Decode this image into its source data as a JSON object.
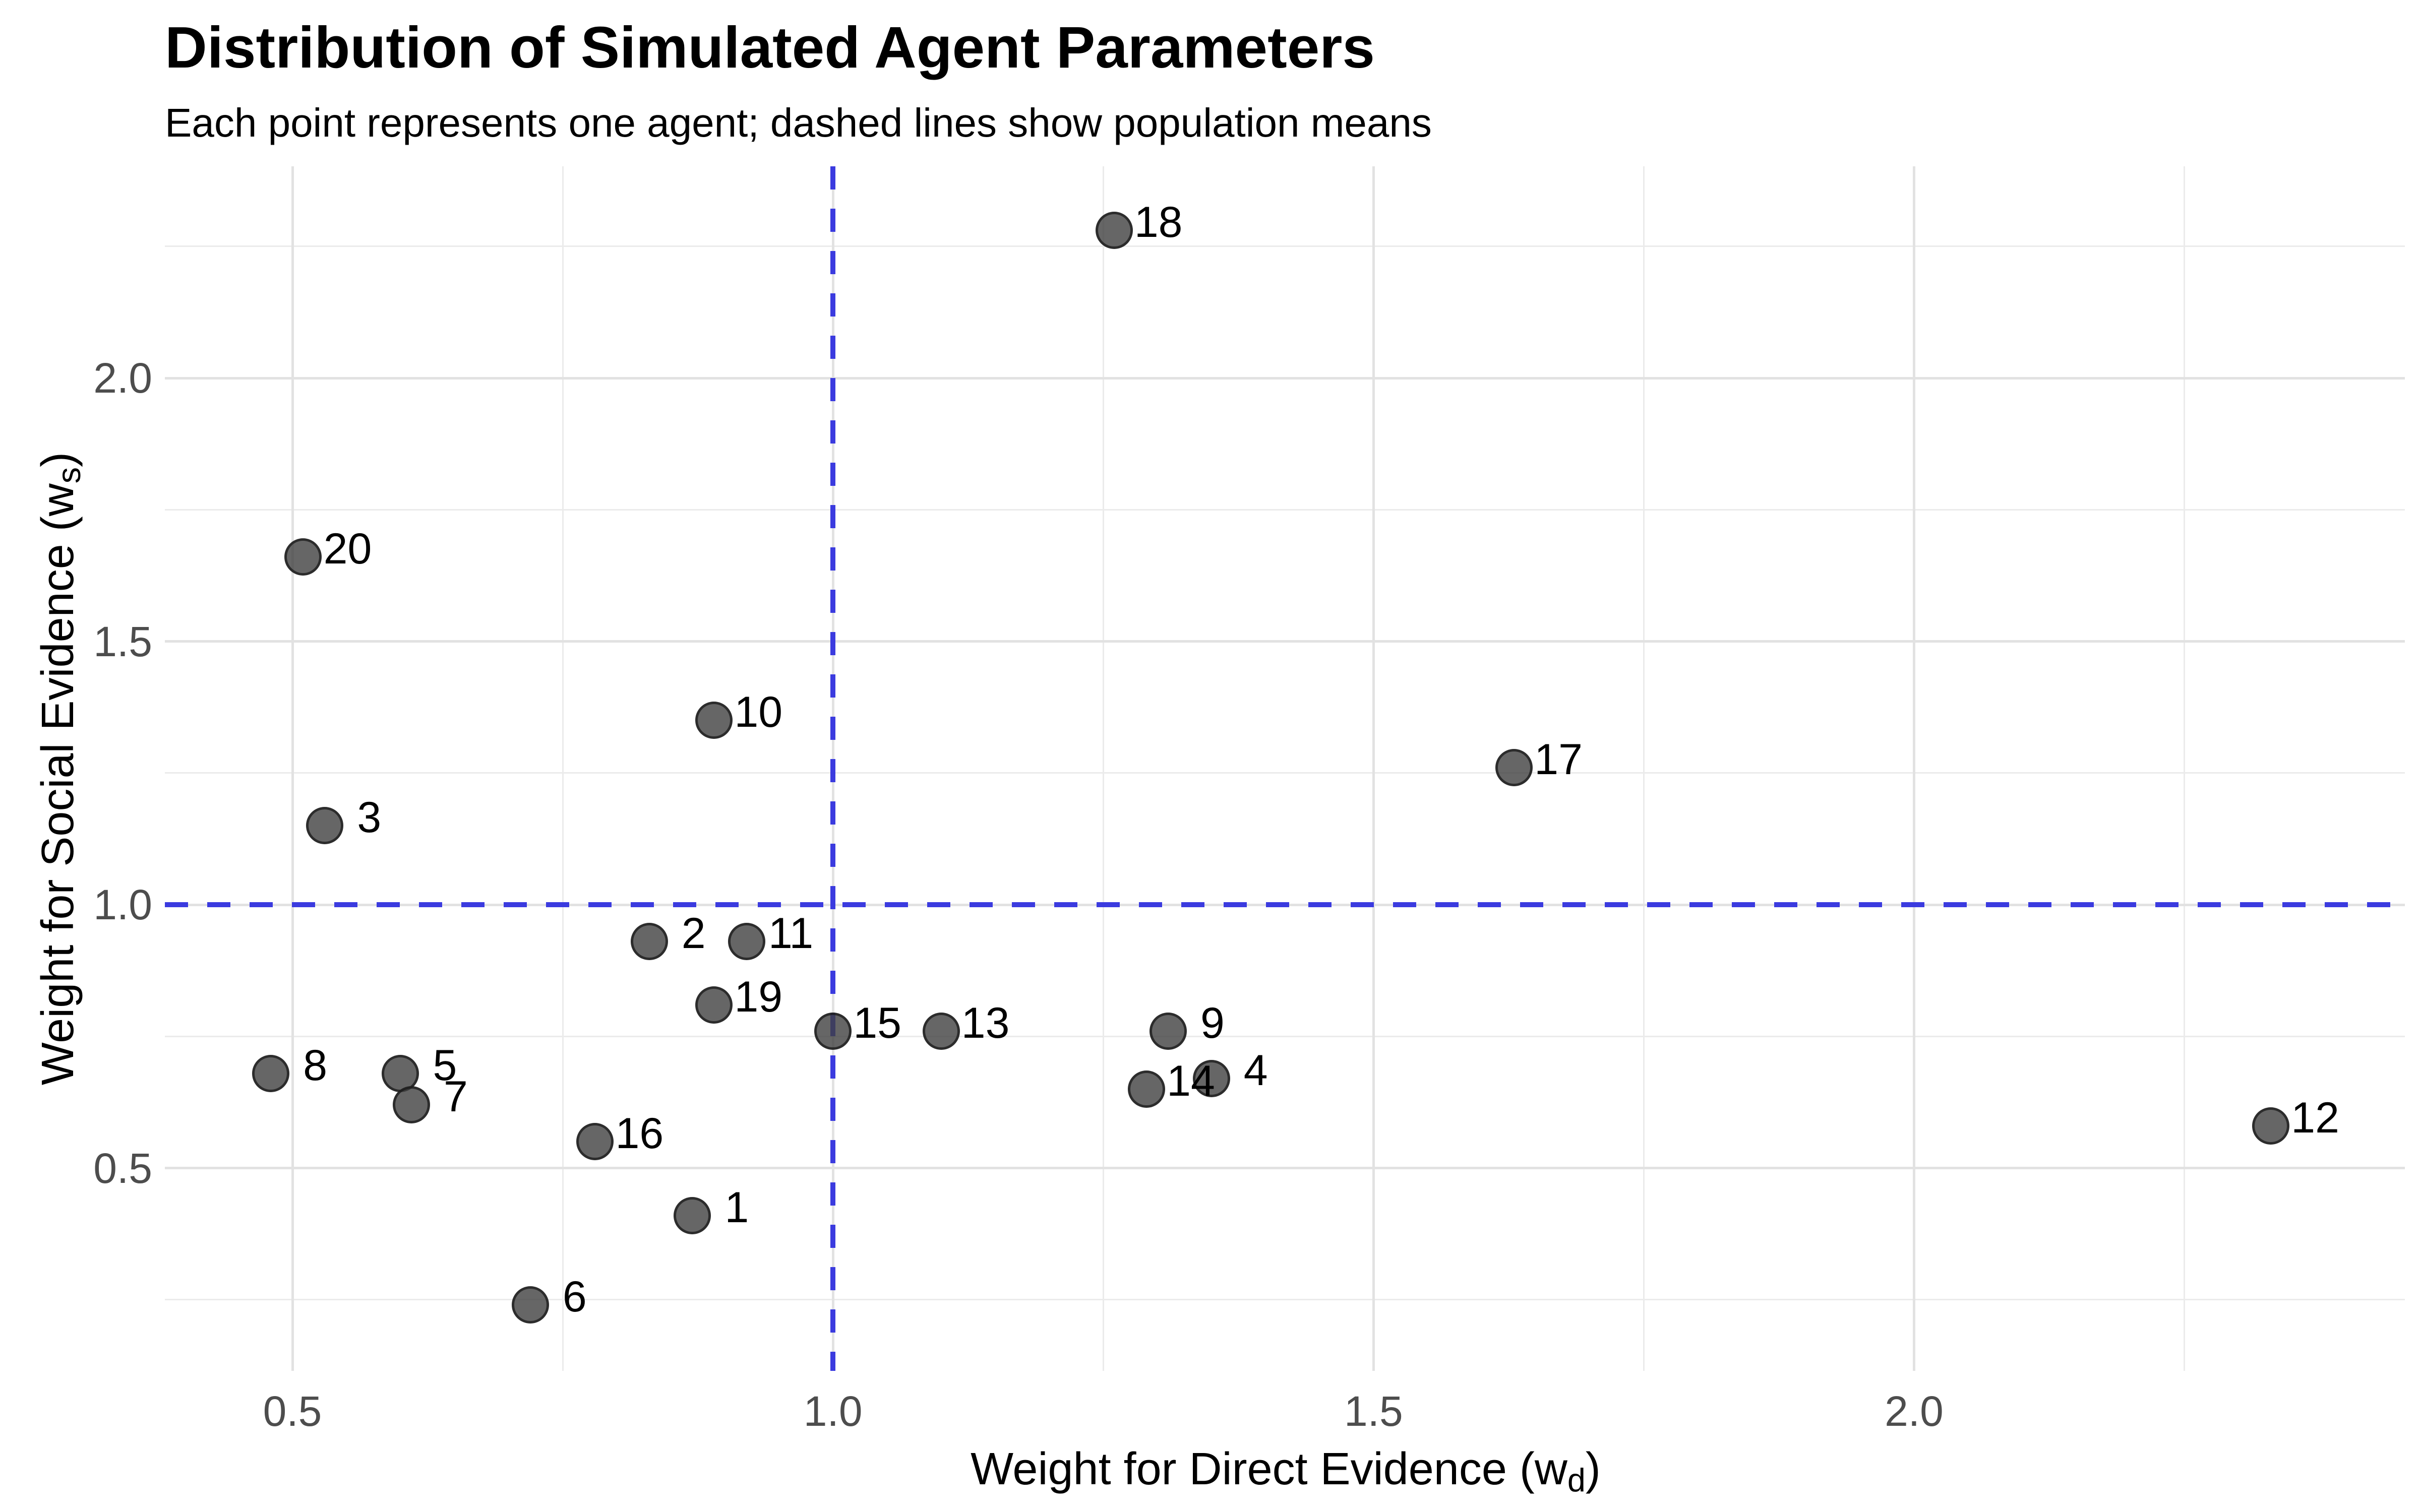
{
  "chart_data": {
    "type": "scatter",
    "title": "Distribution of Simulated Agent Parameters",
    "subtitle": "Each point represents one agent; dashed lines show population means",
    "xlabel": "Weight for Direct Evidence (w_d)",
    "ylabel": "Weight for Social Evidence (w_s)",
    "xlabel_parts": {
      "pre": "Weight for Direct Evidence (w",
      "sub": "d",
      "post": ")"
    },
    "ylabel_parts": {
      "pre": "Weight for Social Evidence (w",
      "sub": "s",
      "post": ")"
    },
    "x_domain": [
      0.382,
      2.454
    ],
    "y_domain": [
      0.115,
      2.402
    ],
    "x_major_ticks": [
      0.5,
      1.0,
      1.5,
      2.0
    ],
    "x_tick_labels": [
      "0.5",
      "1.0",
      "1.5",
      "2.0"
    ],
    "y_major_ticks": [
      0.5,
      1.0,
      1.5,
      2.0
    ],
    "y_tick_labels": [
      "0.5",
      "1.0",
      "1.5",
      "2.0"
    ],
    "x_minor_gridlines": [
      0.75,
      1.25,
      1.75,
      2.25
    ],
    "y_minor_gridlines": [
      0.25,
      0.75,
      1.25,
      1.75,
      2.25
    ],
    "grid": true,
    "legend": false,
    "mean_x": 1.0,
    "mean_y": 1.0,
    "points": [
      {
        "id": "1",
        "x": 0.87,
        "y": 0.41
      },
      {
        "id": "2",
        "x": 0.83,
        "y": 0.93
      },
      {
        "id": "3",
        "x": 0.53,
        "y": 1.15
      },
      {
        "id": "4",
        "x": 1.35,
        "y": 0.67
      },
      {
        "id": "5",
        "x": 0.6,
        "y": 0.68
      },
      {
        "id": "6",
        "x": 0.72,
        "y": 0.24
      },
      {
        "id": "7",
        "x": 0.61,
        "y": 0.62
      },
      {
        "id": "8",
        "x": 0.48,
        "y": 0.68
      },
      {
        "id": "9",
        "x": 1.31,
        "y": 0.76
      },
      {
        "id": "10",
        "x": 0.89,
        "y": 1.35
      },
      {
        "id": "11",
        "x": 0.92,
        "y": 0.93
      },
      {
        "id": "12",
        "x": 2.33,
        "y": 0.58
      },
      {
        "id": "13",
        "x": 1.1,
        "y": 0.76
      },
      {
        "id": "14",
        "x": 1.29,
        "y": 0.65
      },
      {
        "id": "15",
        "x": 1.0,
        "y": 0.76
      },
      {
        "id": "16",
        "x": 0.78,
        "y": 0.55
      },
      {
        "id": "17",
        "x": 1.63,
        "y": 1.26
      },
      {
        "id": "18",
        "x": 1.26,
        "y": 2.28
      },
      {
        "id": "19",
        "x": 0.89,
        "y": 0.81
      },
      {
        "id": "20",
        "x": 0.51,
        "y": 1.66
      }
    ],
    "colors": {
      "point_fill": "rgba(64,64,64,0.80)",
      "point_stroke": "rgba(22,22,22,0.72)",
      "mean_line": "#3b3bdf",
      "grid_major": "#e2e2e2",
      "grid_minor": "#ebebeb",
      "tick_text": "#4d4d4d",
      "title_text": "#000000"
    }
  }
}
